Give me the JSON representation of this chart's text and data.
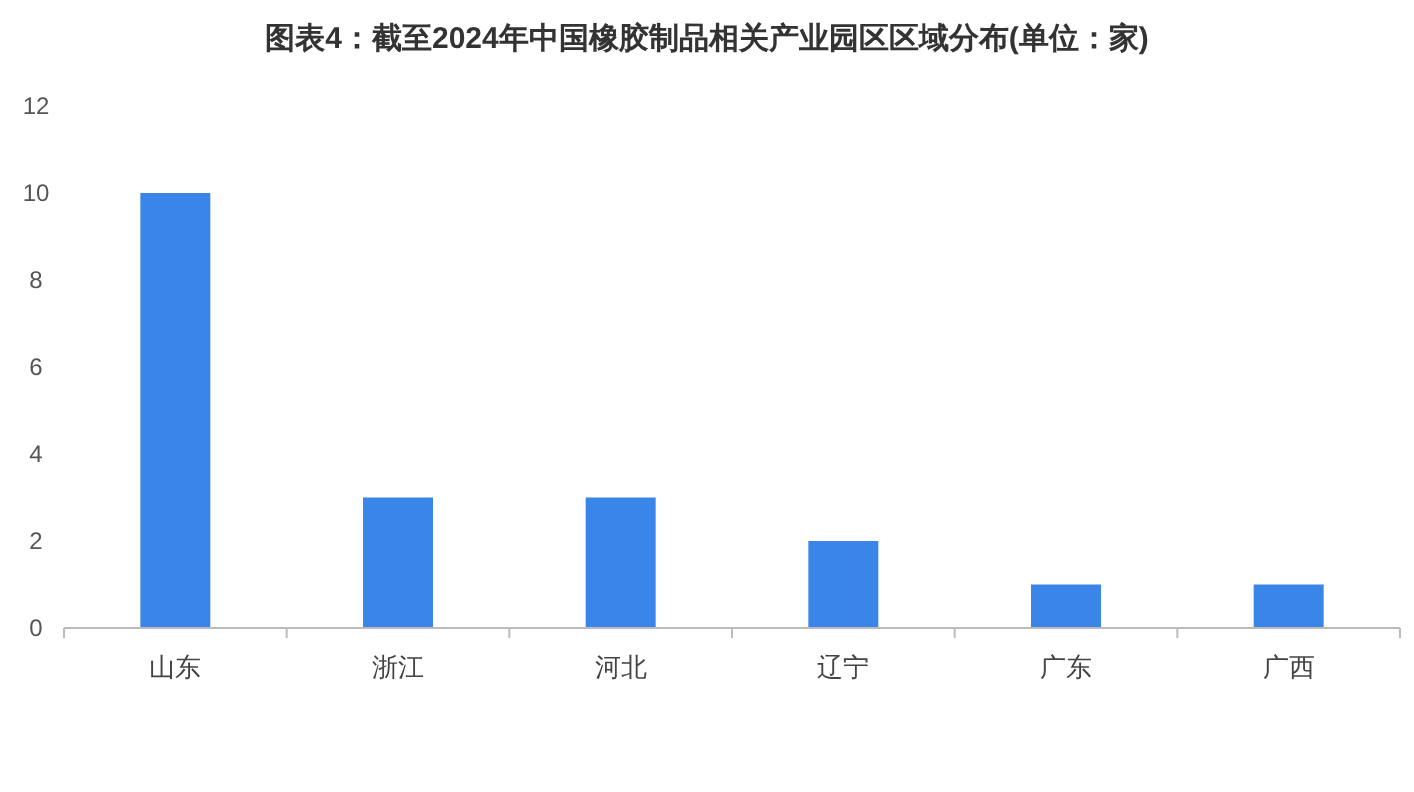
{
  "chart_data": {
    "type": "bar",
    "title": "图表4：截至2024年中国橡胶制品相关产业园区区域分布(单位：家)",
    "categories": [
      "山东",
      "浙江",
      "河北",
      "辽宁",
      "广东",
      "广西"
    ],
    "values": [
      10,
      3,
      3,
      2,
      1,
      1
    ],
    "color": "#3a86e8",
    "ylim": [
      0,
      12
    ],
    "yticks": [
      0,
      2,
      4,
      6,
      8,
      10,
      12
    ],
    "grid": false
  }
}
